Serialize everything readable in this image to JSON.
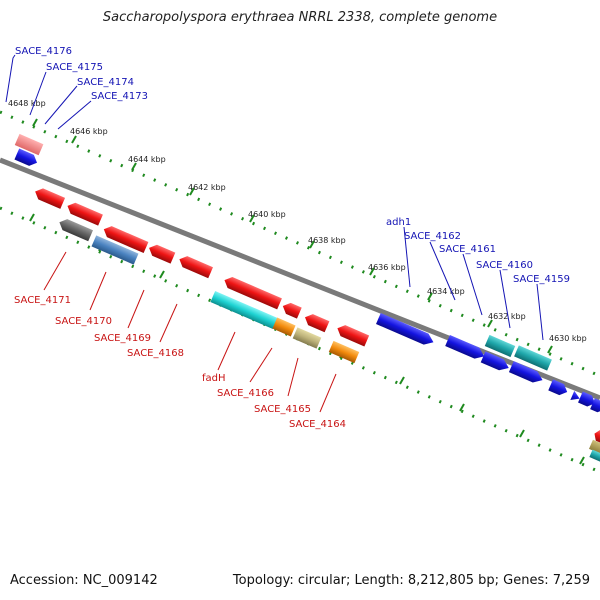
{
  "header": {
    "title": "Saccharopolyspora erythraea NRRL 2338, complete genome"
  },
  "footer": {
    "accession": "Accession: NC_009142",
    "summary": "Topology: circular; Length: 8,212,805 bp; Genes: 7,259"
  },
  "colors": {
    "forward_gene": "#1414e0",
    "reverse_gene": "#e81414",
    "backbone": "#777777",
    "tick": "#1f8a1f",
    "forward_label": "#1414b4",
    "reverse_label": "#c81414"
  },
  "scale": {
    "ticks": [
      "4648 kbp",
      "4646 kbp",
      "4644 kbp",
      "4642 kbp",
      "4640 kbp",
      "4638 kbp",
      "4636 kbp",
      "4634 kbp",
      "4632 kbp",
      "4630 kbp"
    ]
  },
  "forward_labels": [
    "SACE_4176",
    "SACE_4175",
    "SACE_4174",
    "SACE_4173",
    "adh1",
    "SACE_4162",
    "SACE_4161",
    "SACE_4160",
    "SACE_4159"
  ],
  "reverse_labels": [
    "SACE_4171",
    "SACE_4170",
    "SACE_4169",
    "SACE_4168",
    "fadH",
    "SACE_4166",
    "SACE_4165",
    "SACE_4164"
  ]
}
